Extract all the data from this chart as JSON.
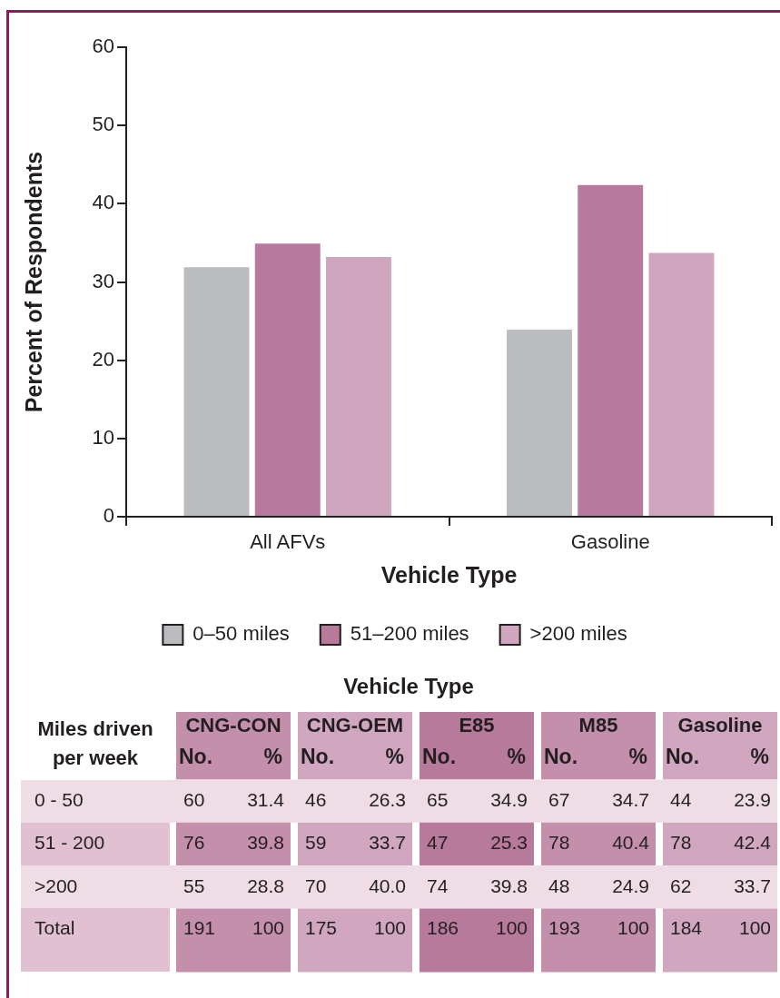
{
  "chart_data": [
    {
      "type": "bar",
      "categories": [
        "All AFVs",
        "Gasoline"
      ],
      "series": [
        {
          "name": "0–50 miles",
          "color": "#bbbcc0",
          "values": [
            31.9,
            23.9
          ]
        },
        {
          "name": "51–200 miles",
          "color": "#b87a9c",
          "values": [
            34.9,
            42.4
          ]
        },
        {
          "name": ">200 miles",
          "color": "#cfa6bd",
          "values": [
            33.2,
            33.7
          ]
        }
      ],
      "xlabel": "Vehicle Type",
      "ylabel": "Percent of Respondents",
      "ylim": [
        0,
        60
      ],
      "yticks": [
        0,
        10,
        20,
        30,
        40,
        50,
        60
      ],
      "legend": "bottom"
    },
    {
      "type": "heatmap",
      "title": "Vehicle Type",
      "ylabel": "Miles driven per week",
      "annotations": [
        "CNG-CON",
        "CNG-OEM",
        "E85",
        "M85",
        "Gasoline"
      ],
      "categories": [
        "No.",
        "%",
        "No.",
        "%",
        "No.",
        "%",
        "No.",
        "%",
        "No.",
        "%"
      ],
      "y_categories": [
        "0 - 50",
        "51 - 200",
        ">200",
        "Total"
      ],
      "cells": [
        [
          60,
          31.4,
          46,
          26.3,
          65,
          34.9,
          67,
          34.7,
          44,
          23.9
        ],
        [
          76,
          39.8,
          59,
          33.7,
          47,
          25.3,
          78,
          40.4,
          78,
          42.4
        ],
        [
          55,
          28.8,
          70,
          40.0,
          74,
          39.8,
          48,
          24.9,
          62,
          33.7
        ],
        [
          191,
          100,
          175,
          100,
          186,
          100,
          193,
          100,
          184,
          100
        ]
      ],
      "cell_labels": [
        [
          "60",
          "31.4",
          "46",
          "26.3",
          "65",
          "34.9",
          "67",
          "34.7",
          "44",
          "23.9"
        ],
        [
          "76",
          "39.8",
          "59",
          "33.7",
          "47",
          "25.3",
          "78",
          "40.4",
          "78",
          "42.4"
        ],
        [
          "55",
          "28.8",
          "70",
          "40.0",
          "74",
          "39.8",
          "48",
          "24.9",
          "62",
          "33.7"
        ],
        [
          "191",
          "100",
          "175",
          "100",
          "186",
          "100",
          "193",
          "100",
          "184",
          "100"
        ]
      ]
    }
  ]
}
